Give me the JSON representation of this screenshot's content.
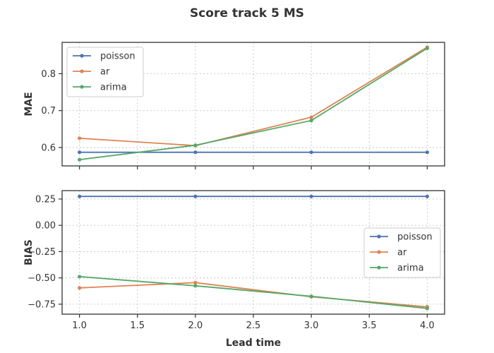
{
  "figure": {
    "title": "Score track 5 MS",
    "xlabel": "Lead time"
  },
  "chart_data": [
    {
      "type": "line",
      "ylabel": "MAE",
      "x": [
        1.0,
        2.0,
        3.0,
        4.0
      ],
      "xlim": [
        0.85,
        4.15
      ],
      "ylim": [
        0.55,
        0.885
      ],
      "xticks": [
        "1.0",
        "1.5",
        "2.0",
        "2.5",
        "3.0",
        "3.5",
        "4.0"
      ],
      "yticks": [
        "0.6",
        "0.7",
        "0.8"
      ],
      "show_xticklabels": false,
      "grid": true,
      "legend_position": "top-left",
      "series": [
        {
          "name": "poisson",
          "color": "#4c72b0",
          "values": [
            0.587,
            0.587,
            0.587,
            0.587
          ]
        },
        {
          "name": "ar",
          "color": "#dd8452",
          "values": [
            0.625,
            0.605,
            0.682,
            0.872
          ]
        },
        {
          "name": "arima",
          "color": "#55a868",
          "values": [
            0.567,
            0.606,
            0.673,
            0.869
          ]
        }
      ]
    },
    {
      "type": "line",
      "ylabel": "BIAS",
      "x": [
        1.0,
        2.0,
        3.0,
        4.0
      ],
      "xlim": [
        0.85,
        4.15
      ],
      "ylim": [
        -0.845,
        0.33
      ],
      "xticks": [
        "1.0",
        "1.5",
        "2.0",
        "2.5",
        "3.0",
        "3.5",
        "4.0"
      ],
      "yticks": [
        "0.25",
        "0.00",
        "−0.25",
        "−0.50",
        "−0.75"
      ],
      "show_xticklabels": true,
      "grid": true,
      "legend_position": "center-right",
      "series": [
        {
          "name": "poisson",
          "color": "#4c72b0",
          "values": [
            0.275,
            0.275,
            0.275,
            0.275
          ]
        },
        {
          "name": "ar",
          "color": "#dd8452",
          "values": [
            -0.595,
            -0.545,
            -0.68,
            -0.775
          ]
        },
        {
          "name": "arima",
          "color": "#55a868",
          "values": [
            -0.488,
            -0.575,
            -0.675,
            -0.79
          ]
        }
      ]
    }
  ]
}
